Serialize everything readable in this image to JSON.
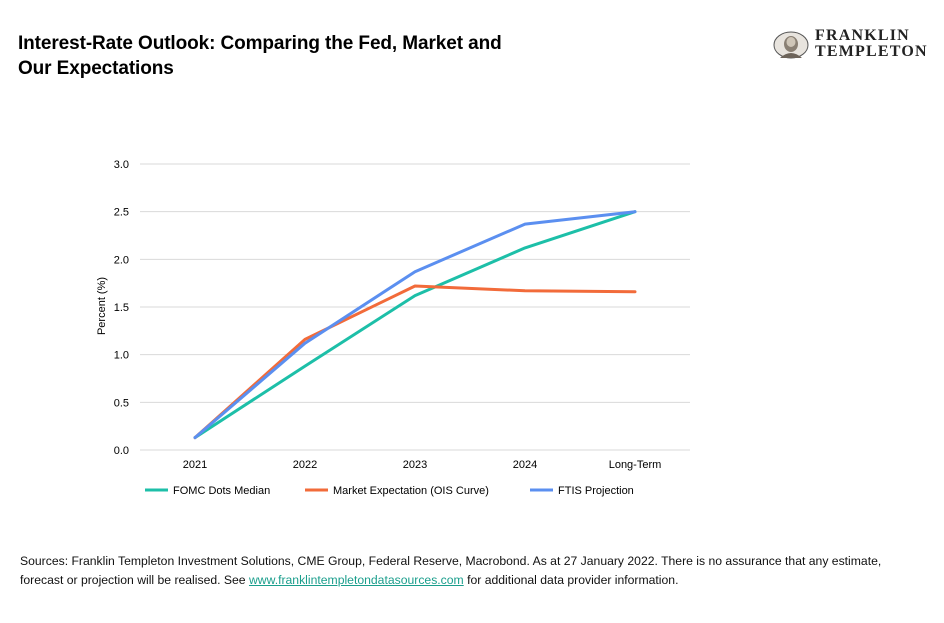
{
  "title_line1": "Interest-Rate Outlook: Comparing the Fed, Market and",
  "title_line2": "Our Expectations",
  "logo": {
    "line1": "FRANKLIN",
    "line2": "TEMPLETON"
  },
  "colors": {
    "fomc": "#1dbfa8",
    "market": "#f26b3a",
    "ftis": "#5b8ff0",
    "grid": "#d9d9d9"
  },
  "footer": {
    "text_before_link": "Sources: Franklin Templeton Investment Solutions, CME Group, Federal Reserve, Macrobond. As at 27 January 2022. There is no assurance that any estimate, forecast or projection will be realised. See ",
    "link_text": "www.franklintempletondatasources.com",
    "text_after_link": " for additional data provider information."
  },
  "chart_data": {
    "type": "line",
    "categories": [
      "2021",
      "2022",
      "2023",
      "2024",
      "Long-Term"
    ],
    "ylabel": "Percent (%)",
    "ylim": [
      0,
      3
    ],
    "yticks": [
      "0.0",
      "0.5",
      "1.0",
      "1.5",
      "2.0",
      "2.5",
      "3.0"
    ],
    "grid": true,
    "legend_position": "bottom",
    "series": [
      {
        "name": "FOMC Dots Median",
        "values": [
          0.13,
          0.88,
          1.62,
          2.12,
          2.5
        ],
        "color": "#1dbfa8"
      },
      {
        "name": "Market Expectation (OIS Curve)",
        "values": [
          0.13,
          1.16,
          1.72,
          1.67,
          1.66
        ],
        "color": "#f26b3a"
      },
      {
        "name": "FTIS Projection",
        "values": [
          0.13,
          1.12,
          1.87,
          2.37,
          2.5
        ],
        "color": "#5b8ff0"
      }
    ]
  }
}
